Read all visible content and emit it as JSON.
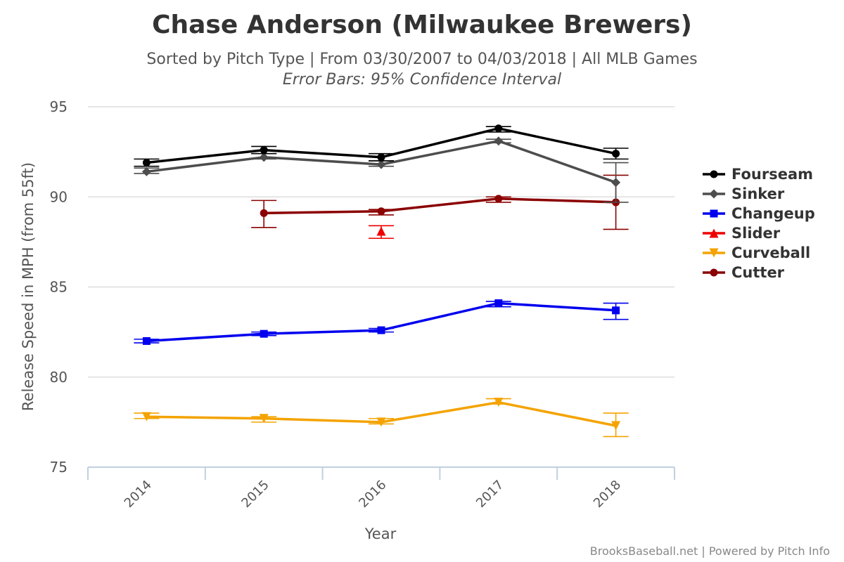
{
  "header": {
    "title": "Chase Anderson (Milwaukee Brewers)",
    "subtitle": "Sorted by Pitch Type | From 03/30/2007 to 04/03/2018 | All MLB Games",
    "subtitle2": "Error Bars: 95% Confidence Interval"
  },
  "credits": "BrooksBaseball.net | Powered by Pitch Info",
  "chart_data": {
    "type": "line",
    "title": "Chase Anderson (Milwaukee Brewers)",
    "xlabel": "Year",
    "ylabel": "Release Speed in MPH (from 55ft)",
    "categories": [
      "2014",
      "2015",
      "2016",
      "2017",
      "2018"
    ],
    "ylim": [
      75,
      95
    ],
    "yticks": [
      75,
      80,
      85,
      90,
      95
    ],
    "grid": true,
    "legend": "right",
    "series": [
      {
        "name": "Fourseam",
        "color": "#000000",
        "marker": "circle",
        "line": true,
        "values": [
          91.9,
          92.6,
          92.2,
          93.8,
          92.4
        ],
        "error": [
          [
            91.7,
            92.1
          ],
          [
            92.4,
            92.8
          ],
          [
            92.0,
            92.4
          ],
          [
            93.6,
            93.9
          ],
          [
            92.1,
            92.7
          ]
        ]
      },
      {
        "name": "Sinker",
        "color": "#4d4d4d",
        "marker": "diamond",
        "line": true,
        "values": [
          91.4,
          92.2,
          91.8,
          93.1,
          90.8
        ],
        "error": [
          [
            91.3,
            91.6
          ],
          [
            92.1,
            92.4
          ],
          [
            91.7,
            92.0
          ],
          [
            93.0,
            93.2
          ],
          [
            89.7,
            91.9
          ]
        ]
      },
      {
        "name": "Changeup",
        "color": "#0000ee",
        "marker": "square",
        "line": true,
        "values": [
          82.0,
          82.4,
          82.6,
          84.1,
          83.7
        ],
        "error": [
          [
            81.9,
            82.1
          ],
          [
            82.3,
            82.5
          ],
          [
            82.5,
            82.7
          ],
          [
            83.9,
            84.2
          ],
          [
            83.2,
            84.1
          ]
        ]
      },
      {
        "name": "Slider",
        "color": "#ee0000",
        "marker": "triangle",
        "line": false,
        "values": [
          null,
          null,
          88.1,
          null,
          null
        ],
        "error": [
          null,
          null,
          [
            87.7,
            88.4
          ],
          null,
          null
        ]
      },
      {
        "name": "Curveball",
        "color": "#f4a300",
        "marker": "triangle-down",
        "line": true,
        "values": [
          77.8,
          77.7,
          77.5,
          78.6,
          77.3
        ],
        "error": [
          [
            77.7,
            78.0
          ],
          [
            77.5,
            77.8
          ],
          [
            77.4,
            77.7
          ],
          [
            78.5,
            78.8
          ],
          [
            76.7,
            78.0
          ]
        ]
      },
      {
        "name": "Cutter",
        "color": "#8b0000",
        "marker": "circle",
        "line": true,
        "values": [
          null,
          89.1,
          89.2,
          89.9,
          89.7
        ],
        "error": [
          null,
          [
            88.3,
            89.8
          ],
          [
            89.0,
            89.3
          ],
          [
            89.7,
            90.0
          ],
          [
            88.2,
            91.2
          ]
        ]
      }
    ]
  }
}
